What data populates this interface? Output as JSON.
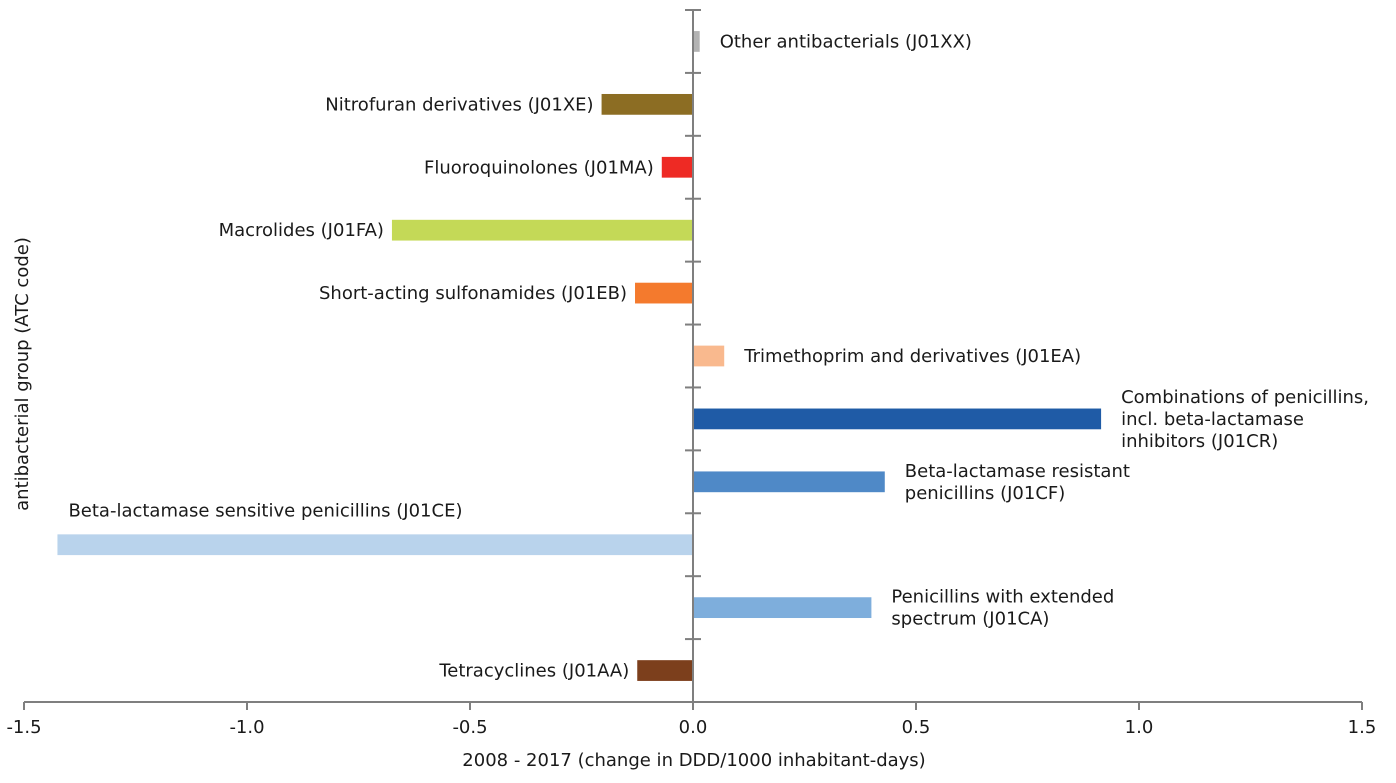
{
  "chart_data": {
    "type": "bar",
    "orientation": "horizontal",
    "title": "",
    "xlabel": "2008 - 2017 (change in DDD/1000 inhabitant-days)",
    "ylabel": "antibacterial group (ATC code)",
    "xlim": [
      -1.5,
      1.5
    ],
    "xticks": [
      "-1.5",
      "-1.0",
      "-0.5",
      "0.0",
      "0.5",
      "1.0",
      "1.5"
    ],
    "xtick_values": [
      -1.5,
      -1.0,
      -0.5,
      0.0,
      0.5,
      1.0,
      1.5
    ],
    "grid": false,
    "legend": "none",
    "bars": [
      {
        "label": [
          "Other antibacterials (J01XX)"
        ],
        "value": 0.015,
        "color": "#b3b3b3"
      },
      {
        "label": [
          "Nitrofuran derivatives (J01XE)"
        ],
        "value": -0.205,
        "color": "#8c6d23"
      },
      {
        "label": [
          "Fluoroquinolones (J01MA)"
        ],
        "value": -0.07,
        "color": "#ee2a24"
      },
      {
        "label": [
          "Macrolides (J01FA)"
        ],
        "value": -0.675,
        "color": "#c4d957"
      },
      {
        "label": [
          "Short-acting sulfonamides (J01EB)"
        ],
        "value": -0.13,
        "color": "#f47a2d"
      },
      {
        "label": [
          "Trimethoprim and derivatives (J01EA)"
        ],
        "value": 0.07,
        "color": "#f9b98e"
      },
      {
        "label": [
          "Combinations of penicillins,",
          "incl. beta-lactamase",
          "inhibitors (J01CR)"
        ],
        "value": 0.915,
        "color": "#1f5ba6"
      },
      {
        "label": [
          "Beta-lactamase resistant",
          "penicillins (J01CF)"
        ],
        "value": 0.43,
        "color": "#4f89c7"
      },
      {
        "label": [
          "Beta-lactamase sensitive penicillins (J01CE)"
        ],
        "value": -1.425,
        "color": "#b9d3ec"
      },
      {
        "label": [
          "Penicillins with extended",
          "spectrum (J01CA)"
        ],
        "value": 0.4,
        "color": "#7eaedc"
      },
      {
        "label": [
          "Tetracyclines (J01AA)"
        ],
        "value": -0.125,
        "color": "#7c3f1c"
      }
    ]
  }
}
